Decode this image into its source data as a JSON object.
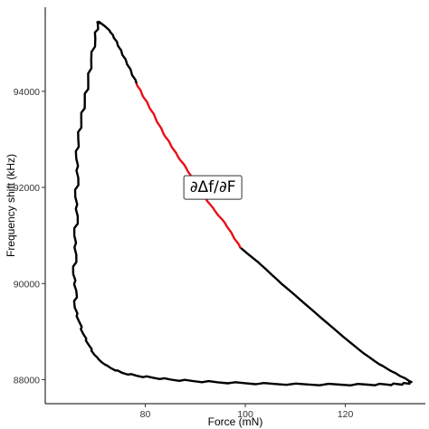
{
  "chart_data": {
    "type": "line",
    "title": "",
    "xlabel": "Force (mN)",
    "ylabel": "Frequency shift (kHz)",
    "xlim": [
      60,
      136
    ],
    "ylim": [
      87500,
      95750
    ],
    "x_ticks": [
      80,
      100,
      120
    ],
    "x_tick_labels": [
      "80",
      "100",
      "120"
    ],
    "y_ticks": [
      88000,
      90000,
      92000,
      94000
    ],
    "y_tick_labels": [
      "88000",
      "90000",
      "92000",
      "94000"
    ],
    "grid": false,
    "legend": "none",
    "annotation": {
      "text": "∂Δf/∂F",
      "x": 93.5,
      "y": 92000
    },
    "series": [
      {
        "color": "#000000",
        "x": [
          70.5,
          70.0,
          69.2,
          68.6,
          67.9,
          67.2,
          66.6,
          66.2,
          66.6,
          66.0,
          66.5,
          65.8,
          66.2,
          65.6,
          66.2,
          65.9,
          66.8,
          67.6,
          68.7,
          69.8,
          71.3,
          73.1,
          75.4,
          78.3,
          81.5,
          85.2,
          89.5,
          94.5,
          100.0,
          105.8,
          112.5,
          119.0,
          124.5,
          128.2,
          130.6,
          132.4,
          133.2
        ],
        "y": [
          95420,
          95100,
          94650,
          94200,
          93800,
          93400,
          93000,
          92600,
          92200,
          91800,
          91400,
          91000,
          90600,
          90200,
          89850,
          89500,
          89200,
          88950,
          88720,
          88520,
          88360,
          88240,
          88140,
          88080,
          88040,
          88000,
          87970,
          87945,
          87925,
          87910,
          87900,
          87895,
          87895,
          87900,
          87905,
          87920,
          87950
        ]
      },
      {
        "color": "#000000",
        "x": [
          133.2,
          131.5,
          129.5,
          126.8,
          123.5,
          119.5,
          115.0,
          110.8,
          107.2,
          104.6,
          102.5,
          100.8,
          99.0
        ],
        "y": [
          87950,
          88050,
          88160,
          88320,
          88560,
          88900,
          89300,
          89680,
          90000,
          90250,
          90450,
          90590,
          90750
        ]
      },
      {
        "color": "#e8101a",
        "x": [
          99.0,
          97.5,
          96.0,
          94.0,
          92.0,
          90.0,
          88.2,
          86.5,
          85.0,
          83.5,
          82.0,
          80.6,
          79.3,
          78.2
        ],
        "y": [
          90750,
          91000,
          91250,
          91500,
          91780,
          92100,
          92400,
          92650,
          92900,
          93150,
          93450,
          93720,
          93950,
          94180
        ]
      },
      {
        "color": "#000000",
        "x": [
          78.2,
          77.2,
          76.2,
          75.3,
          74.4,
          73.6,
          72.9,
          72.2,
          71.6,
          71.1,
          70.8,
          70.5
        ],
        "y": [
          94180,
          94400,
          94620,
          94800,
          95000,
          95150,
          95260,
          95330,
          95380,
          95420,
          95440,
          95420
        ]
      }
    ]
  }
}
